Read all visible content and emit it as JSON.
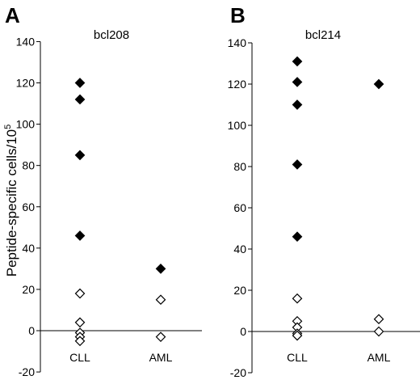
{
  "ylabel": "Peptide-specific cells/10",
  "ylabel_sup": "5",
  "chart_data": [
    {
      "type": "scatter",
      "panel": "A",
      "title": "bcl208",
      "categories": [
        "CLL",
        "AML"
      ],
      "ylim": [
        -20,
        140
      ],
      "yticks": [
        -20,
        0,
        20,
        40,
        60,
        80,
        100,
        120,
        140
      ],
      "ytick_labels": [
        "-20",
        "0",
        "20",
        "40",
        "60",
        "80",
        "100",
        "120",
        "140"
      ],
      "series": [
        {
          "marker": "filled-diamond",
          "color": "#000000",
          "points": [
            {
              "category": "CLL",
              "y": 120
            },
            {
              "category": "CLL",
              "y": 112
            },
            {
              "category": "CLL",
              "y": 85
            },
            {
              "category": "CLL",
              "y": 46
            },
            {
              "category": "AML",
              "y": 30
            }
          ]
        },
        {
          "marker": "open-diamond",
          "color": "#ffffff",
          "points": [
            {
              "category": "CLL",
              "y": 18
            },
            {
              "category": "CLL",
              "y": 4
            },
            {
              "category": "CLL",
              "y": -1
            },
            {
              "category": "CLL",
              "y": -3
            },
            {
              "category": "CLL",
              "y": -5
            },
            {
              "category": "AML",
              "y": 15
            },
            {
              "category": "AML",
              "y": -3
            }
          ]
        }
      ]
    },
    {
      "type": "scatter",
      "panel": "B",
      "title": "bcl214",
      "categories": [
        "CLL",
        "AML"
      ],
      "ylim": [
        -20,
        140
      ],
      "yticks": [
        -20,
        0,
        20,
        40,
        60,
        80,
        100,
        120,
        140
      ],
      "ytick_labels": [
        "-20",
        "0",
        "20",
        "40",
        "60",
        "80",
        "100",
        "120",
        "140"
      ],
      "series": [
        {
          "marker": "filled-diamond",
          "color": "#000000",
          "points": [
            {
              "category": "CLL",
              "y": 131
            },
            {
              "category": "CLL",
              "y": 121
            },
            {
              "category": "CLL",
              "y": 110
            },
            {
              "category": "CLL",
              "y": 81
            },
            {
              "category": "CLL",
              "y": 46
            },
            {
              "category": "AML",
              "y": 120
            }
          ]
        },
        {
          "marker": "open-diamond",
          "color": "#ffffff",
          "points": [
            {
              "category": "CLL",
              "y": 16
            },
            {
              "category": "CLL",
              "y": 5
            },
            {
              "category": "CLL",
              "y": 2
            },
            {
              "category": "CLL",
              "y": -1
            },
            {
              "category": "CLL",
              "y": -2
            },
            {
              "category": "AML",
              "y": 6
            },
            {
              "category": "AML",
              "y": 0
            }
          ]
        }
      ]
    }
  ]
}
